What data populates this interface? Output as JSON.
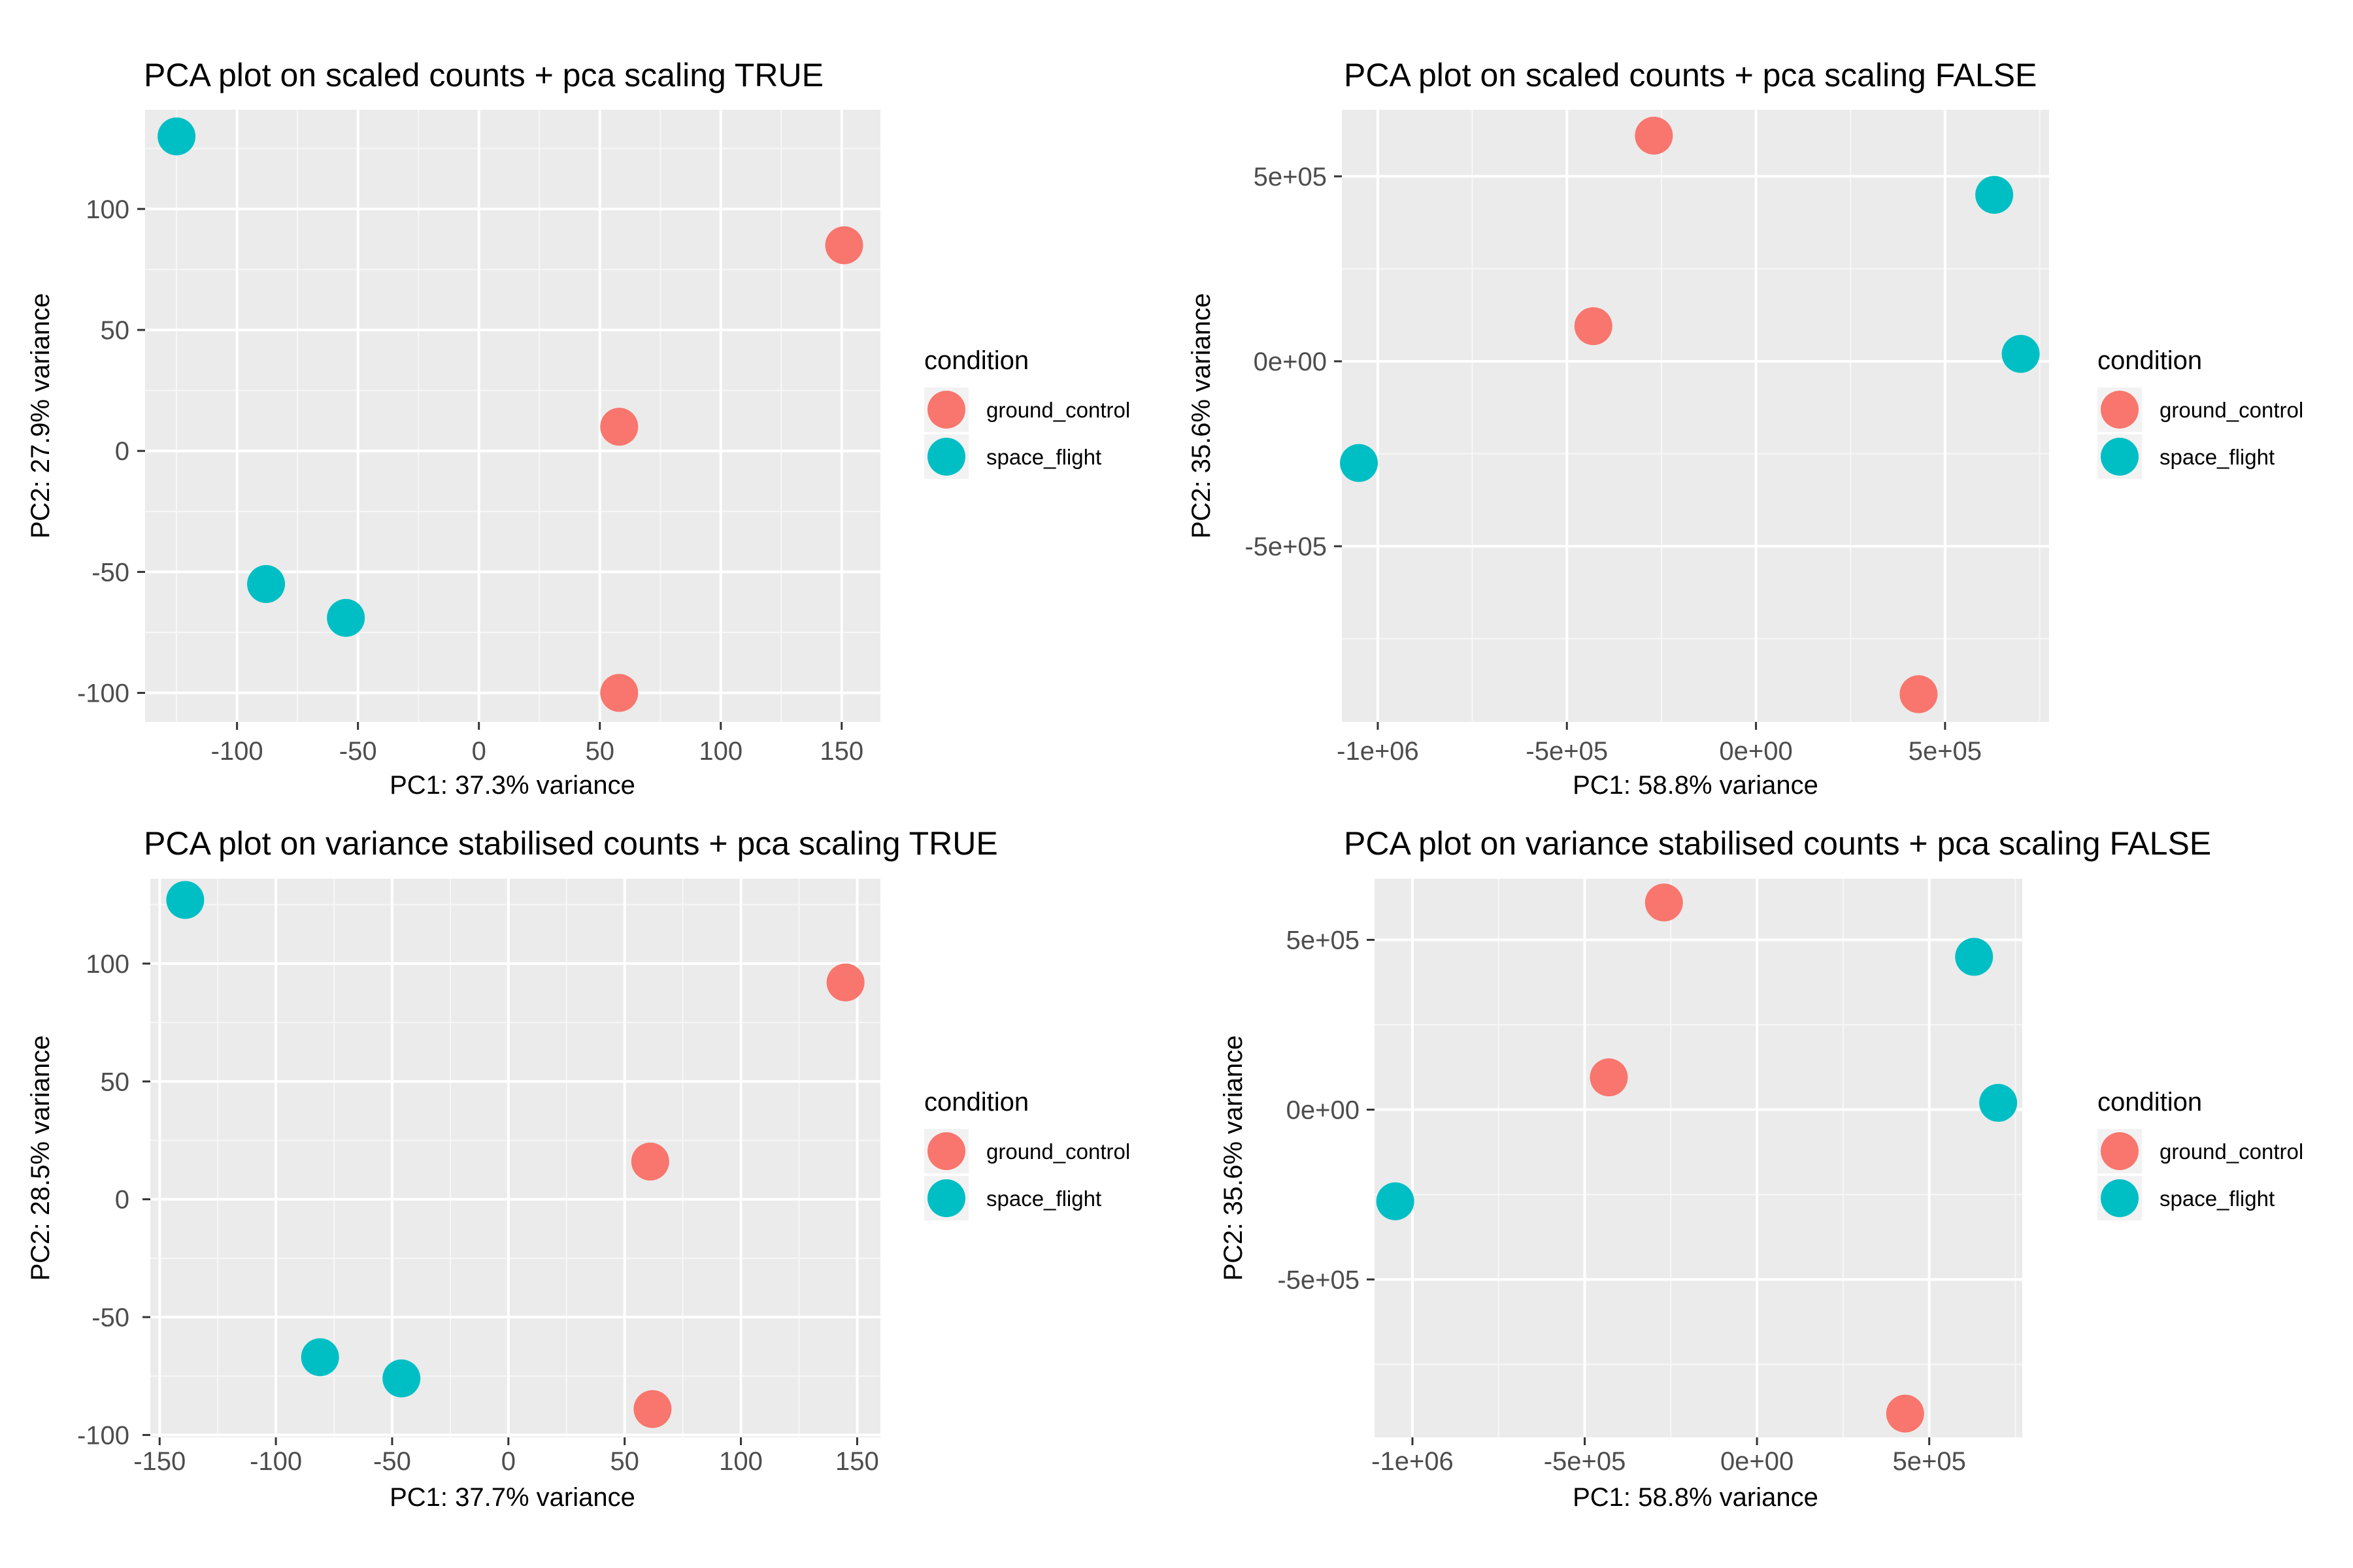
{
  "chart_data": [
    {
      "type": "scatter",
      "title": "PCA plot on scaled counts + pca scaling TRUE",
      "xlabel": "PC1: 37.3% variance",
      "ylabel": "PC2: 27.9% variance",
      "xlim": [
        -138,
        166
      ],
      "ylim": [
        -112,
        141
      ],
      "xticks": [
        -100,
        -50,
        0,
        50,
        100,
        150
      ],
      "xtick_labels": [
        "-100",
        "-50",
        "0",
        "50",
        "100",
        "150"
      ],
      "yticks": [
        -100,
        -50,
        0,
        50,
        100
      ],
      "ytick_labels": [
        "-100",
        "-50",
        "0",
        "50",
        "100"
      ],
      "grid": true,
      "legend": {
        "title": "condition",
        "position": "right"
      },
      "series": [
        {
          "name": "ground_control",
          "color": "#F8766D",
          "x": [
            151,
            58,
            58
          ],
          "y": [
            85,
            10,
            -100
          ]
        },
        {
          "name": "space_flight",
          "color": "#00BFC4",
          "x": [
            -125,
            -88,
            -55
          ],
          "y": [
            130,
            -55,
            -69
          ]
        }
      ]
    },
    {
      "type": "scatter",
      "title": "PCA plot on scaled counts + pca scaling FALSE",
      "xlabel": "PC1: 58.8% variance",
      "ylabel": "PC2: 35.6% variance",
      "xlim": [
        -1095000,
        775000
      ],
      "ylim": [
        -975000,
        680000
      ],
      "xticks": [
        -1000000,
        -500000,
        0,
        500000
      ],
      "xtick_labels": [
        "-1e+06",
        "-5e+05",
        "0e+00",
        "5e+05"
      ],
      "yticks": [
        -500000,
        0,
        500000
      ],
      "ytick_labels": [
        "-5e+05",
        "0e+00",
        "5e+05"
      ],
      "grid": true,
      "legend": {
        "title": "condition",
        "position": "right"
      },
      "series": [
        {
          "name": "ground_control",
          "color": "#F8766D",
          "x": [
            -270000,
            -430000,
            430000
          ],
          "y": [
            610000,
            95000,
            -900000
          ]
        },
        {
          "name": "space_flight",
          "color": "#00BFC4",
          "x": [
            630000,
            700000,
            -1050000
          ],
          "y": [
            450000,
            20000,
            -275000
          ]
        }
      ]
    },
    {
      "type": "scatter",
      "title": "PCA plot on variance stabilised counts + pca scaling TRUE",
      "xlabel": "PC1: 37.7% variance",
      "ylabel": "PC2: 28.5% variance",
      "xlim": [
        -154,
        160
      ],
      "ylim": [
        -101,
        136
      ],
      "xticks": [
        -150,
        -100,
        -50,
        0,
        50,
        100,
        150
      ],
      "xtick_labels": [
        "-150",
        "-100",
        "-50",
        "0",
        "50",
        "100",
        "150"
      ],
      "yticks": [
        -100,
        -50,
        0,
        50,
        100
      ],
      "ytick_labels": [
        "-100",
        "-50",
        "0",
        "50",
        "100"
      ],
      "grid": true,
      "legend": {
        "title": "condition",
        "position": "right"
      },
      "series": [
        {
          "name": "ground_control",
          "color": "#F8766D",
          "x": [
            145,
            61,
            62
          ],
          "y": [
            92,
            16,
            -89
          ]
        },
        {
          "name": "space_flight",
          "color": "#00BFC4",
          "x": [
            -139,
            -81,
            -46
          ],
          "y": [
            127,
            -67,
            -76
          ]
        }
      ]
    },
    {
      "type": "scatter",
      "title": "PCA plot on variance stabilised counts + pca scaling FALSE",
      "xlabel": "PC1: 58.8% variance",
      "ylabel": "PC2: 35.6% variance",
      "xlim": [
        -1110000,
        770000
      ],
      "ylim": [
        -965000,
        680000
      ],
      "xticks": [
        -1000000,
        -500000,
        0,
        500000
      ],
      "xtick_labels": [
        "-1e+06",
        "-5e+05",
        "0e+00",
        "5e+05"
      ],
      "yticks": [
        -500000,
        0,
        500000
      ],
      "ytick_labels": [
        "-5e+05",
        "0e+00",
        "5e+05"
      ],
      "grid": true,
      "legend": {
        "title": "condition",
        "position": "right"
      },
      "series": [
        {
          "name": "ground_control",
          "color": "#F8766D",
          "x": [
            -270000,
            -430000,
            430000
          ],
          "y": [
            610000,
            95000,
            -895000
          ]
        },
        {
          "name": "space_flight",
          "color": "#00BFC4",
          "x": [
            630000,
            700000,
            -1050000
          ],
          "y": [
            450000,
            20000,
            -270000
          ]
        }
      ]
    }
  ]
}
